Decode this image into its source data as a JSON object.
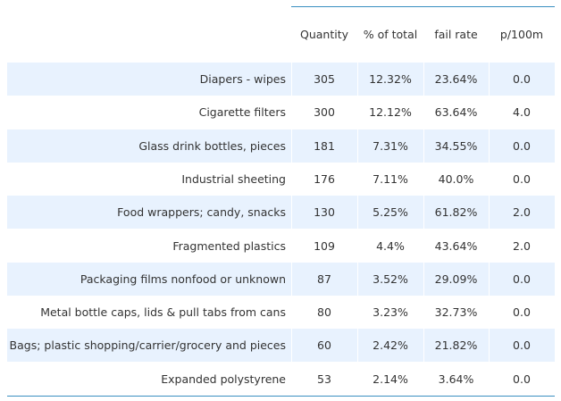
{
  "table": {
    "headers": [
      "",
      "Quantity",
      "% of total",
      "fail rate",
      "p/100m"
    ],
    "rows": [
      [
        "Diapers - wipes",
        "305",
        "12.32%",
        "23.64%",
        "0.0"
      ],
      [
        "Cigarette filters",
        "300",
        "12.12%",
        "63.64%",
        "4.0"
      ],
      [
        "Glass drink bottles, pieces",
        "181",
        "7.31%",
        "34.55%",
        "0.0"
      ],
      [
        "Industrial sheeting",
        "176",
        "7.11%",
        "40.0%",
        "0.0"
      ],
      [
        "Food wrappers; candy, snacks",
        "130",
        "5.25%",
        "61.82%",
        "2.0"
      ],
      [
        "Fragmented plastics",
        "109",
        "4.4%",
        "43.64%",
        "2.0"
      ],
      [
        "Packaging films nonfood or unknown",
        "87",
        "3.52%",
        "29.09%",
        "0.0"
      ],
      [
        "Metal bottle caps, lids & pull tabs from cans",
        "80",
        "3.23%",
        "32.73%",
        "0.0"
      ],
      [
        "Bags; plastic shopping/carrier/grocery and pieces",
        "60",
        "2.42%",
        "21.82%",
        "0.0"
      ],
      [
        "Expanded polystyrene",
        "53",
        "2.14%",
        "3.64%",
        "0.0"
      ]
    ]
  },
  "colors": {
    "row_shade": "#e8f2fe",
    "rule": "#3a8fc1",
    "text": "#333333"
  }
}
